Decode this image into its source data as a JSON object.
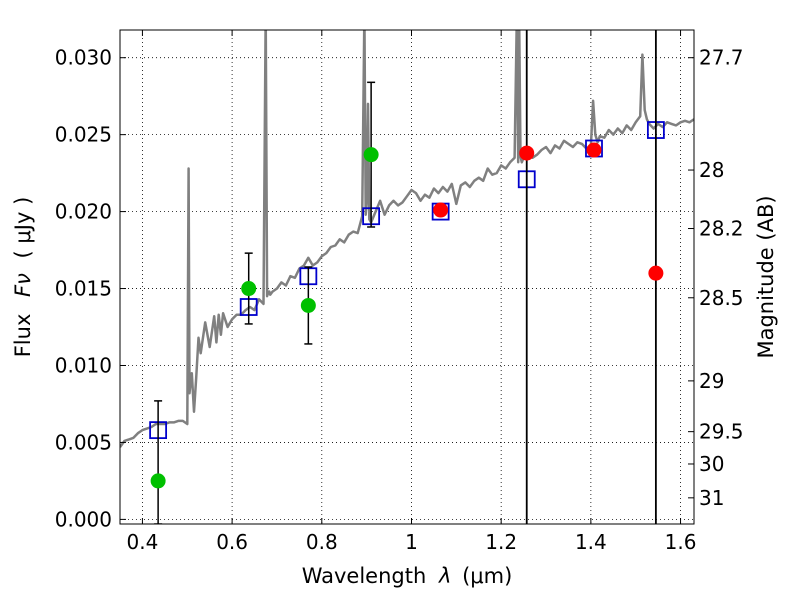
{
  "chart_data": {
    "type": "scatter",
    "title": "",
    "xlabel_text": "Wavelength",
    "xlabel_symbol": "λ",
    "xlabel_unit": "(μm)",
    "ylabel_text": "Flux",
    "ylabel_symbol": "Fν",
    "ylabel_unit": "( μJy )",
    "y2label": "Magnitude (AB)",
    "xlim": [
      0.35,
      1.63
    ],
    "ylim": [
      -0.0003,
      0.0318
    ],
    "grid": true,
    "x_ticks": [
      {
        "value": 0.4,
        "label": "0.4"
      },
      {
        "value": 0.6,
        "label": "0.6"
      },
      {
        "value": 0.8,
        "label": "0.8"
      },
      {
        "value": 1.0,
        "label": "1"
      },
      {
        "value": 1.2,
        "label": "1.2"
      },
      {
        "value": 1.4,
        "label": "1.4"
      },
      {
        "value": 1.6,
        "label": "1.6"
      }
    ],
    "y_ticks": [
      {
        "value": 0.0,
        "label": "0.000"
      },
      {
        "value": 0.005,
        "label": "0.005"
      },
      {
        "value": 0.01,
        "label": "0.010"
      },
      {
        "value": 0.015,
        "label": "0.015"
      },
      {
        "value": 0.02,
        "label": "0.020"
      },
      {
        "value": 0.025,
        "label": "0.025"
      },
      {
        "value": 0.03,
        "label": "0.030"
      }
    ],
    "y2_ticks": [
      {
        "flux": 0.03,
        "label": "27.7"
      },
      {
        "flux": 0.0227,
        "label": "28"
      },
      {
        "flux": 0.0189,
        "label": "28.2"
      },
      {
        "flux": 0.0144,
        "label": "28.5"
      },
      {
        "flux": 0.009,
        "label": "29"
      },
      {
        "flux": 0.0057,
        "label": "29.5"
      },
      {
        "flux": 0.0036,
        "label": "30"
      },
      {
        "flux": 0.0014,
        "label": "31"
      }
    ],
    "series": [
      {
        "kind": "line",
        "color": "#808080",
        "x": [
          0.35,
          0.36,
          0.37,
          0.38,
          0.39,
          0.4,
          0.41,
          0.42,
          0.43,
          0.44,
          0.45,
          0.46,
          0.47,
          0.48,
          0.49,
          0.5,
          0.503,
          0.505,
          0.507,
          0.51,
          0.515,
          0.52,
          0.525,
          0.53,
          0.54,
          0.55,
          0.56,
          0.565,
          0.57,
          0.575,
          0.58,
          0.59,
          0.6,
          0.61,
          0.62,
          0.63,
          0.64,
          0.65,
          0.66,
          0.67,
          0.675,
          0.678,
          0.68,
          0.683,
          0.685,
          0.69,
          0.7,
          0.71,
          0.72,
          0.73,
          0.74,
          0.75,
          0.76,
          0.77,
          0.78,
          0.79,
          0.8,
          0.81,
          0.82,
          0.83,
          0.84,
          0.85,
          0.86,
          0.87,
          0.88,
          0.89,
          0.895,
          0.898,
          0.9,
          0.903,
          0.906,
          0.91,
          0.92,
          0.93,
          0.94,
          0.95,
          0.96,
          0.97,
          0.98,
          0.99,
          1.0,
          1.01,
          1.02,
          1.03,
          1.04,
          1.05,
          1.06,
          1.07,
          1.08,
          1.09,
          1.1,
          1.11,
          1.12,
          1.13,
          1.14,
          1.15,
          1.16,
          1.17,
          1.18,
          1.19,
          1.2,
          1.21,
          1.22,
          1.23,
          1.235,
          1.238,
          1.24,
          1.243,
          1.246,
          1.25,
          1.26,
          1.27,
          1.28,
          1.29,
          1.3,
          1.31,
          1.32,
          1.33,
          1.34,
          1.35,
          1.36,
          1.37,
          1.38,
          1.39,
          1.4,
          1.405,
          1.41,
          1.415,
          1.42,
          1.43,
          1.44,
          1.45,
          1.46,
          1.47,
          1.48,
          1.49,
          1.5,
          1.51,
          1.515,
          1.52,
          1.525,
          1.53,
          1.54,
          1.55,
          1.56,
          1.57,
          1.58,
          1.59,
          1.6,
          1.61,
          1.62,
          1.63
        ],
        "y": [
          0.0047,
          0.0051,
          0.0052,
          0.0053,
          0.0056,
          0.0058,
          0.0059,
          0.006,
          0.0062,
          0.0062,
          0.0062,
          0.0063,
          0.0063,
          0.0064,
          0.0064,
          0.0062,
          0.0228,
          0.0082,
          0.0088,
          0.0095,
          0.007,
          0.0092,
          0.0118,
          0.0108,
          0.0128,
          0.0112,
          0.0132,
          0.0115,
          0.0133,
          0.012,
          0.0134,
          0.0125,
          0.013,
          0.0133,
          0.0133,
          0.0136,
          0.0138,
          0.0136,
          0.0143,
          0.014,
          0.033,
          0.0145,
          0.0147,
          0.0148,
          0.0146,
          0.0148,
          0.015,
          0.0154,
          0.0152,
          0.0158,
          0.0157,
          0.0163,
          0.0165,
          0.017,
          0.0165,
          0.0167,
          0.0171,
          0.0173,
          0.0177,
          0.0178,
          0.0182,
          0.018,
          0.0185,
          0.0187,
          0.0186,
          0.0197,
          0.033,
          0.0198,
          0.0205,
          0.027,
          0.0195,
          0.0193,
          0.02,
          0.0207,
          0.0198,
          0.0204,
          0.0207,
          0.0204,
          0.0206,
          0.021,
          0.0214,
          0.0212,
          0.0207,
          0.0211,
          0.0209,
          0.0215,
          0.0212,
          0.0216,
          0.0213,
          0.0218,
          0.0205,
          0.0217,
          0.0219,
          0.0216,
          0.022,
          0.0222,
          0.022,
          0.0228,
          0.0224,
          0.0225,
          0.023,
          0.0228,
          0.0232,
          0.0235,
          0.033,
          0.0232,
          0.033,
          0.0236,
          0.0232,
          0.0235,
          0.0238,
          0.0235,
          0.0237,
          0.024,
          0.0242,
          0.0238,
          0.0243,
          0.0241,
          0.0246,
          0.0244,
          0.0242,
          0.0245,
          0.0244,
          0.0241,
          0.0243,
          0.0272,
          0.025,
          0.0245,
          0.0249,
          0.0248,
          0.0253,
          0.025,
          0.0254,
          0.0251,
          0.0256,
          0.0253,
          0.0258,
          0.0262,
          0.0302,
          0.0266,
          0.026,
          0.0257,
          0.0254,
          0.0257,
          0.0255,
          0.0258,
          0.0257,
          0.0256,
          0.0258,
          0.0259,
          0.0258,
          0.026
        ]
      },
      {
        "kind": "open-square",
        "color": "#0000cc",
        "x": [
          0.435,
          0.637,
          0.77,
          0.91,
          1.065,
          1.257,
          1.407,
          1.545
        ],
        "y": [
          0.0058,
          0.0138,
          0.0158,
          0.0197,
          0.02,
          0.0221,
          0.0241,
          0.0253
        ]
      },
      {
        "kind": "filled-circle",
        "color": "#00c000",
        "x": [
          0.435,
          0.637,
          0.77,
          0.91
        ],
        "y": [
          0.0025,
          0.015,
          0.0139,
          0.0237
        ],
        "err": [
          0.0052,
          0.0023,
          0.0025,
          0.0047
        ]
      },
      {
        "kind": "filled-circle",
        "color": "#ff0000",
        "x": [
          1.065,
          1.257,
          1.407,
          1.545
        ],
        "y": [
          0.0201,
          0.0238,
          0.024,
          0.016
        ],
        "err_full_height": [
          false,
          true,
          false,
          true
        ]
      }
    ]
  }
}
